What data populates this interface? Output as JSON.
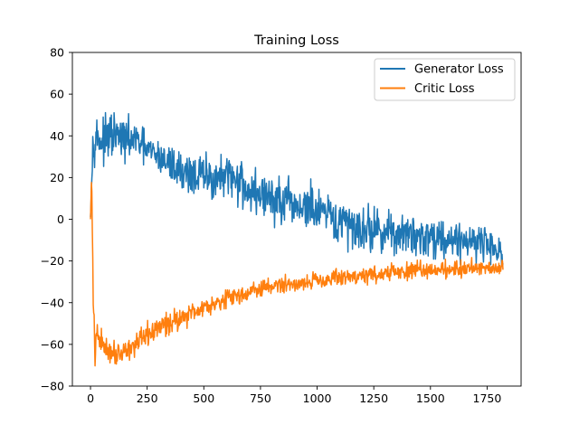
{
  "chart_data": {
    "type": "line",
    "title": "Training Loss",
    "xlabel": "",
    "ylabel": "",
    "xlim": [
      -80,
      1900
    ],
    "ylim": [
      -80,
      80
    ],
    "x_ticks": [
      0,
      250,
      500,
      750,
      1000,
      1250,
      1500,
      1750
    ],
    "y_ticks": [
      -80,
      -60,
      -40,
      -20,
      0,
      20,
      40,
      60,
      80
    ],
    "grid": false,
    "legend_position": "top-right",
    "series": [
      {
        "name": "Generator Loss",
        "color": "#1f77b4",
        "x": [
          0,
          10,
          25,
          50,
          100,
          150,
          200,
          250,
          300,
          400,
          500,
          600,
          650,
          700,
          750,
          800,
          850,
          900,
          950,
          1000,
          1100,
          1200,
          1300,
          1400,
          1500,
          1600,
          1700,
          1750,
          1800,
          1820
        ],
        "y": [
          1,
          35,
          40,
          37,
          40,
          38,
          38,
          33,
          30,
          23,
          20,
          19,
          20,
          13,
          12,
          10,
          7,
          6,
          6,
          3,
          -2,
          -4,
          -6,
          -8,
          -8,
          -10,
          -10,
          -12,
          -14,
          -20
        ],
        "noise": [
          0,
          6,
          7,
          7,
          8,
          7,
          6,
          6,
          6,
          7,
          8,
          8,
          9,
          8,
          8,
          8,
          9,
          9,
          9,
          9,
          8,
          8,
          7,
          7,
          7,
          7,
          6,
          6,
          6,
          5
        ]
      },
      {
        "name": "Critic Loss",
        "color": "#ff7f0e",
        "x": [
          0,
          5,
          12,
          20,
          30,
          50,
          100,
          150,
          200,
          250,
          300,
          400,
          500,
          600,
          700,
          800,
          900,
          1000,
          1100,
          1200,
          1300,
          1400,
          1500,
          1600,
          1700,
          1800,
          1820
        ],
        "y": [
          0,
          22,
          -40,
          -65,
          -55,
          -60,
          -64,
          -63,
          -60,
          -56,
          -52,
          -47,
          -42,
          -38,
          -35,
          -32,
          -31,
          -29,
          -28,
          -27,
          -26,
          -25,
          -24,
          -24,
          -23,
          -23,
          -22
        ],
        "noise": [
          0,
          0,
          6,
          5,
          5,
          5,
          4,
          4,
          4,
          4,
          4,
          4,
          3,
          3,
          3,
          3,
          3,
          3,
          3,
          3,
          3,
          3,
          3,
          3,
          3,
          3,
          3
        ]
      }
    ]
  }
}
